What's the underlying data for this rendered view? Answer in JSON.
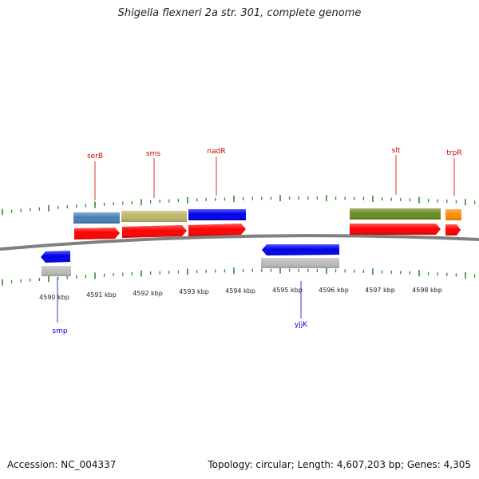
{
  "title": "Shigella flexneri 2a str. 301, complete genome",
  "footer": {
    "accession": "Accession: NC_004337",
    "summary": "Topology: circular; Length: 4,607,203 bp; Genes: 4,305"
  },
  "colors": {
    "forward_label": "#cc0000",
    "reverse_label": "#0000cc",
    "tick": "#2e8b2e",
    "backbone": "#808080",
    "cds": "#ff0000",
    "gene_reverse_arrow": "#0000ee",
    "gene_reverse_box": "#bbbbbb"
  },
  "axis": {
    "unit": "kbp",
    "tick_labels": [
      "4590 kbp",
      "4591 kbp",
      "4592 kbp",
      "4593 kbp",
      "4594 kbp",
      "4595 kbp",
      "4596 kbp",
      "4597 kbp",
      "4598 kbp"
    ]
  },
  "forward_genes": [
    {
      "name": "serB",
      "box_color": "#4682b4"
    },
    {
      "name": "sms",
      "box_color": "#bdb76b"
    },
    {
      "name": "nadR",
      "box_color": "#0000ee"
    },
    {
      "name": "slt",
      "box_color": "#6b8e23"
    },
    {
      "name": "trpR",
      "box_color": "#ff8c00"
    }
  ],
  "reverse_genes": [
    {
      "name": "smp"
    },
    {
      "name": "yjjK"
    }
  ]
}
